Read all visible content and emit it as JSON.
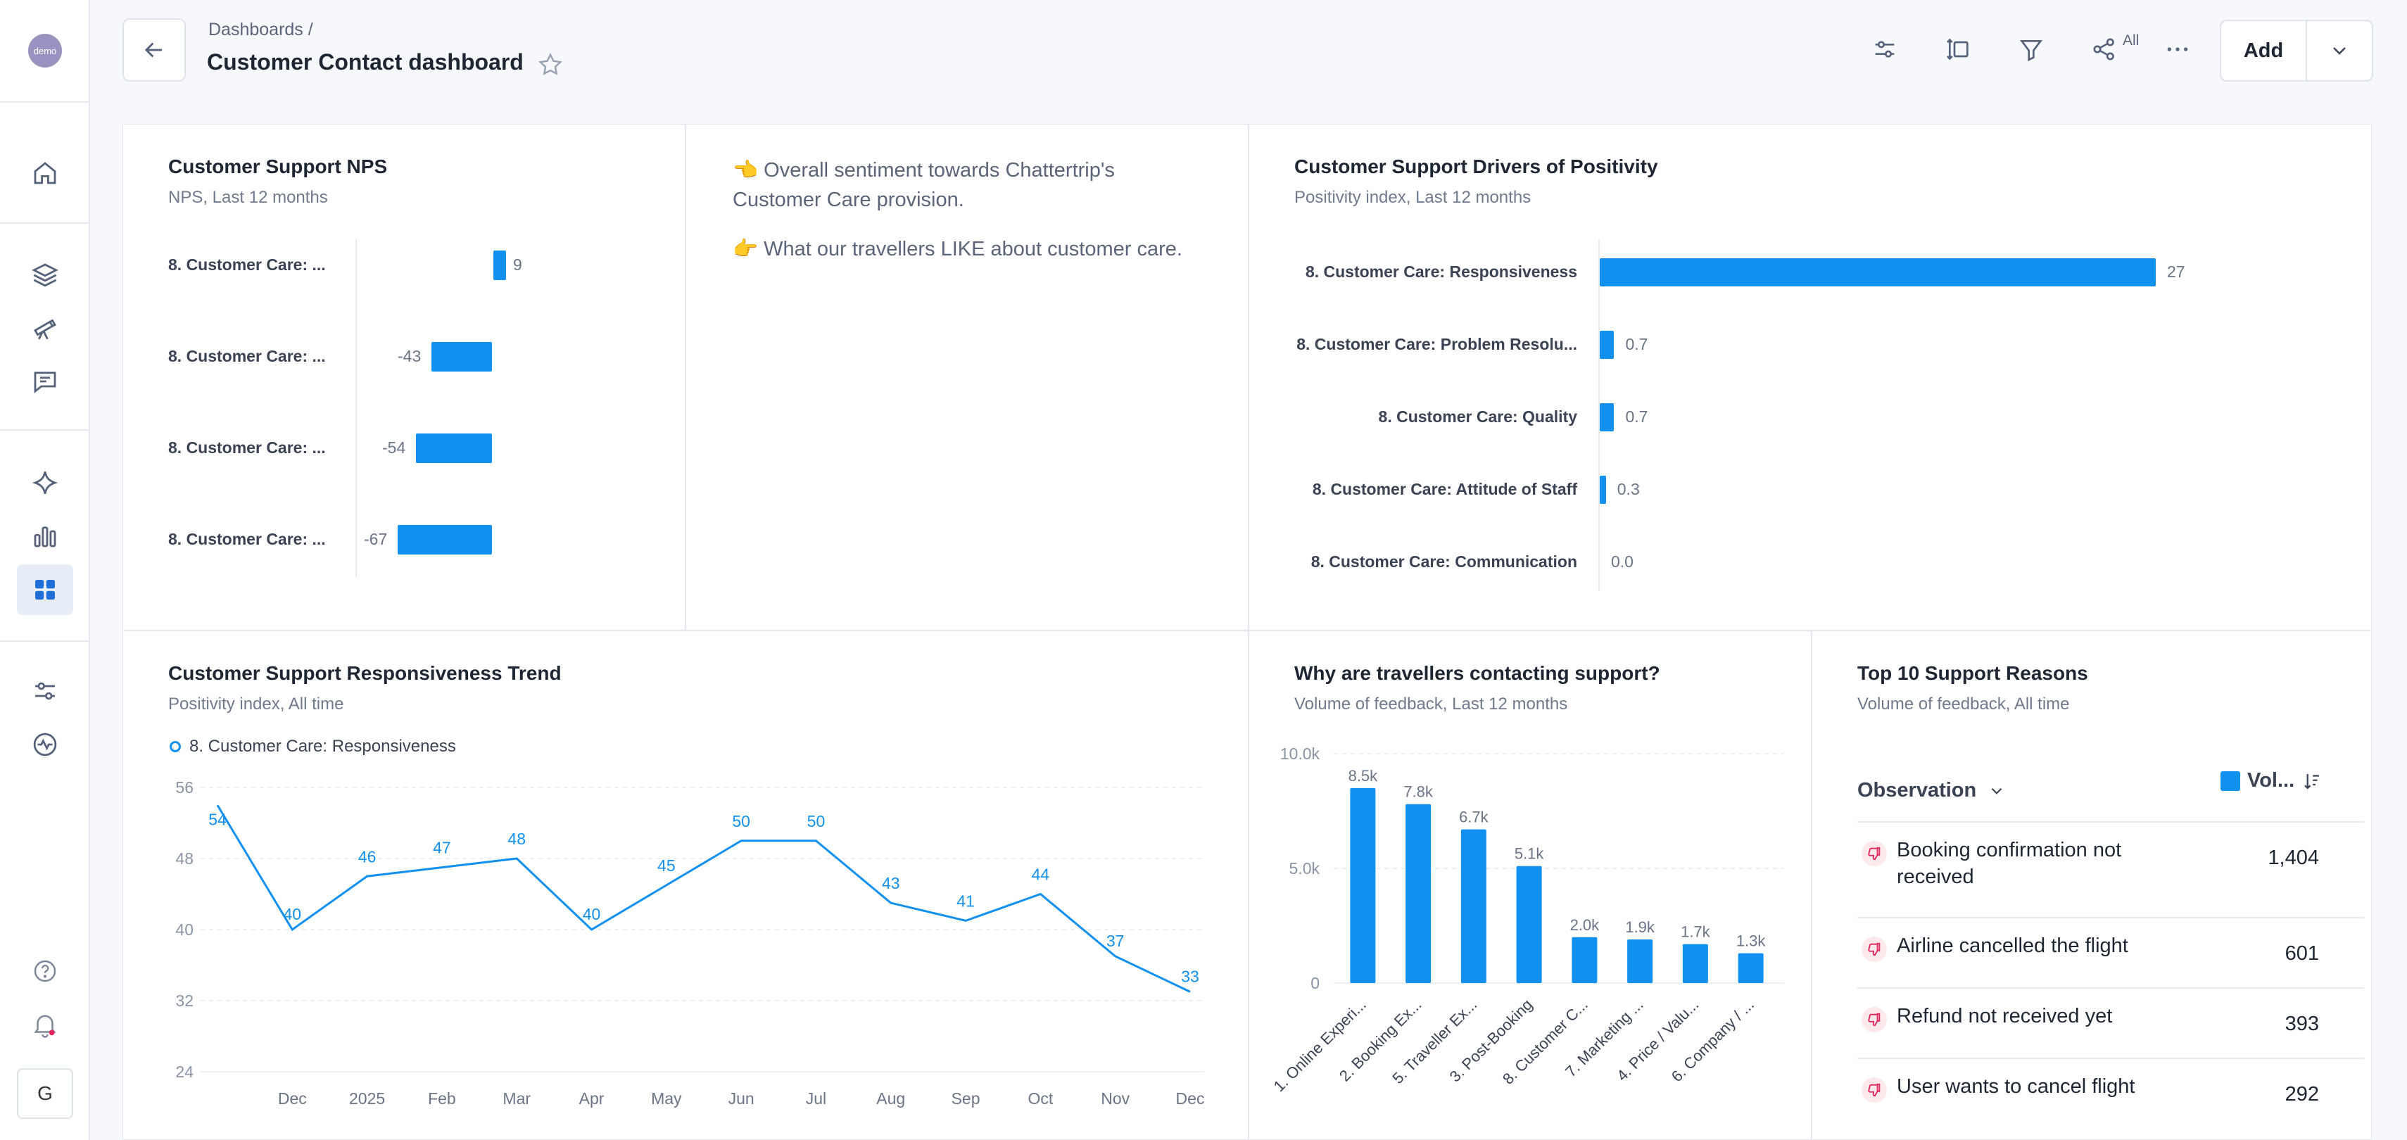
{
  "sidebar": {
    "logo_text": "demo",
    "user_initial": "G",
    "nav_icons": [
      "home-icon",
      "layers-icon",
      "telescope-icon",
      "message-icon",
      "sparkle-icon",
      "bar-chart-icon",
      "dashboard-icon",
      "settings-sliders-icon",
      "activity-icon",
      "help-icon",
      "bell-icon"
    ]
  },
  "header": {
    "breadcrumb": "Dashboards  /",
    "title": "Customer Contact dashboard",
    "share_label": "All",
    "add_label": "Add"
  },
  "panels": {
    "nps": {
      "title": "Customer Support NPS",
      "subtitle": "NPS, Last 12 months",
      "labels": [
        "8. Customer Care: ...",
        "8. Customer Care: ...",
        "8. Customer Care: ...",
        "8. Customer Care: ..."
      ],
      "values": [
        9,
        -43,
        -54,
        -67
      ],
      "value_labels": [
        "9",
        "-43",
        "-54",
        "-67"
      ]
    },
    "text": {
      "line1": "👈 Overall sentiment towards Chattertrip's",
      "line2": "Customer Care provision.",
      "line3": "👉 What our travellers LIKE about customer care."
    },
    "drivers": {
      "title": "Customer Support Drivers of Positivity",
      "subtitle": "Positivity index, Last 12 months",
      "labels": [
        "8. Customer Care: Responsiveness",
        "8. Customer Care: Problem Resolu...",
        "8. Customer Care: Quality",
        "8. Customer Care: Attitude of Staff",
        "8. Customer Care: Communication"
      ],
      "values": [
        27,
        0.7,
        0.7,
        0.3,
        0.0
      ],
      "value_labels": [
        "27",
        "0.7",
        "0.7",
        "0.3",
        "0.0"
      ]
    },
    "trend": {
      "title": "Customer Support Responsiveness Trend",
      "subtitle": "Positivity index, All time",
      "legend": "8. Customer Care: Responsiveness"
    },
    "contact": {
      "title": "Why are travellers contacting support?",
      "subtitle": "Volume of feedback, Last 12 months"
    },
    "reasons": {
      "title": "Top 10 Support Reasons",
      "subtitle": "Volume of feedback, All time",
      "col_observation": "Observation",
      "col_volume": "Vol...",
      "rows": [
        {
          "label": "Booking confirmation not received",
          "value": "1,404"
        },
        {
          "label": "Airline cancelled the flight",
          "value": "601"
        },
        {
          "label": "Refund not received yet",
          "value": "393"
        },
        {
          "label": "User wants to cancel flight",
          "value": "292"
        }
      ]
    }
  },
  "chart_data": [
    {
      "type": "line",
      "title": "Customer Support Responsiveness Trend",
      "x": [
        "",
        "Dec",
        "2025",
        "Feb",
        "Mar",
        "Apr",
        "May",
        "Jun",
        "Jul",
        "Aug",
        "Sep",
        "Oct",
        "Nov",
        "Dec"
      ],
      "series": [
        {
          "name": "8. Customer Care: Responsiveness",
          "values": [
            54,
            40,
            46,
            47,
            48,
            40,
            45,
            50,
            50,
            43,
            41,
            44,
            37,
            33
          ]
        }
      ],
      "ylim": [
        24,
        56
      ],
      "yticks": [
        24,
        32,
        40,
        48,
        56
      ],
      "color": "#1290f0"
    },
    {
      "type": "bar",
      "title": "Why are travellers contacting support?",
      "categories": [
        "1. Online Experi...",
        "2. Booking Ex...",
        "5. Traveller Ex...",
        "3. Post-Booking",
        "8. Customer C...",
        "7. Marketing ...",
        "4. Price / Valu...",
        "6. Company / ..."
      ],
      "values": [
        8500,
        7800,
        6700,
        5100,
        2000,
        1900,
        1700,
        1300
      ],
      "value_labels": [
        "8.5k",
        "7.8k",
        "6.7k",
        "5.1k",
        "2.0k",
        "1.9k",
        "1.7k",
        "1.3k"
      ],
      "ylim": [
        0,
        10000
      ],
      "ytick_labels": [
        "0",
        "5.0k",
        "10.0k"
      ],
      "color": "#1290f0"
    }
  ]
}
